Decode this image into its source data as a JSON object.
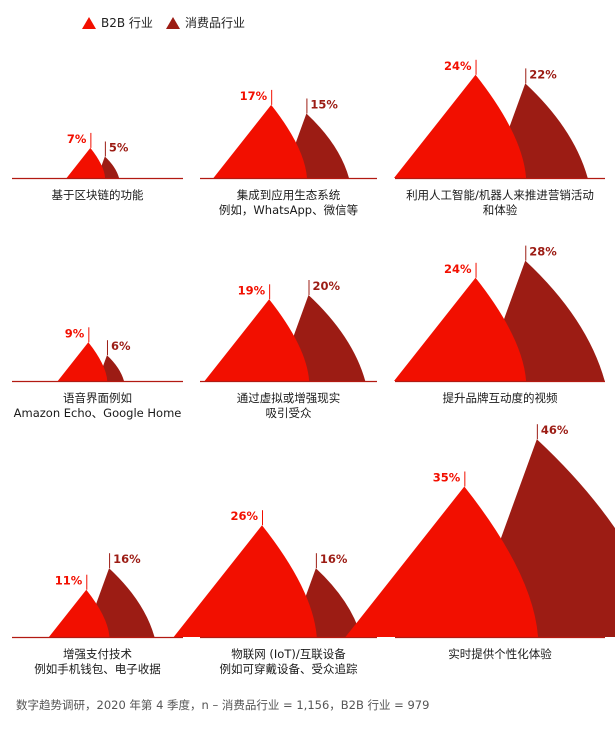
{
  "legend": {
    "b2b_label": "B2B 行业",
    "consumer_label": "消费品行业"
  },
  "colors": {
    "b2b": "#f20f00",
    "consumer": "#9c1c14",
    "baseline": "#b21a12"
  },
  "chart_data": {
    "type": "area",
    "title": "",
    "series": [
      {
        "name": "B2B 行业"
      },
      {
        "name": "消费品行业"
      }
    ],
    "panels": [
      {
        "label_lines": [
          "基于区块链的功能"
        ],
        "b2b": 7,
        "consumer": 5
      },
      {
        "label_lines": [
          "集成到应用生态系统",
          "例如，WhatsApp、微信等"
        ],
        "b2b": 17,
        "consumer": 15
      },
      {
        "label_lines": [
          "利用人工智能/机器人来推进营销活动",
          "和体验"
        ],
        "b2b": 24,
        "consumer": 22
      },
      {
        "label_lines": [
          "语音界面例如",
          "Amazon Echo、Google Home"
        ],
        "b2b": 9,
        "consumer": 6
      },
      {
        "label_lines": [
          "通过虚拟或增强现实",
          "吸引受众"
        ],
        "b2b": 19,
        "consumer": 20
      },
      {
        "label_lines": [
          "提升品牌互动度的视频"
        ],
        "b2b": 24,
        "consumer": 28
      },
      {
        "label_lines": [
          "增强支付技术",
          "例如手机钱包、电子收据"
        ],
        "b2b": 11,
        "consumer": 16
      },
      {
        "label_lines": [
          "物联网 (IoT)/互联设备",
          "例如可穿戴设备、受众追踪"
        ],
        "b2b": 26,
        "consumer": 16
      },
      {
        "label_lines": [
          "实时提供个性化体验"
        ],
        "b2b": 35,
        "consumer": 46
      }
    ]
  },
  "footnote": "数字趋势调研，2020 年第 4 季度，n – 消费品行业 = 1,156，B2B 行业 = 979"
}
